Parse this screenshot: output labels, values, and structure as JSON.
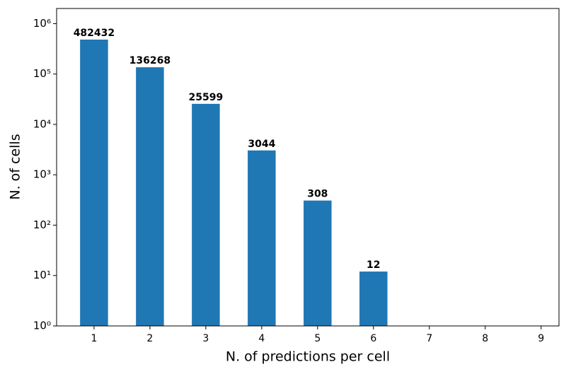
{
  "chart_data": {
    "type": "bar",
    "xlabel": "N. of predictions per cell",
    "ylabel": "N. of cells",
    "x": [
      1,
      2,
      3,
      4,
      5,
      6,
      7,
      8,
      9
    ],
    "values": [
      482432,
      136268,
      25599,
      3044,
      308,
      12,
      null,
      null,
      null
    ],
    "color": "#1f77b4",
    "xlim": [
      0.33,
      9.32
    ],
    "xticks": [
      1,
      2,
      3,
      4,
      5,
      6,
      7,
      8,
      9
    ],
    "yscale": "log",
    "ylim": [
      1,
      2000000
    ],
    "yticks": [
      {
        "value": 1,
        "label": "10⁰"
      },
      {
        "value": 10,
        "label": "10¹"
      },
      {
        "value": 100,
        "label": "10²"
      },
      {
        "value": 1000,
        "label": "10³"
      },
      {
        "value": 10000,
        "label": "10⁴"
      },
      {
        "value": 100000,
        "label": "10⁵"
      },
      {
        "value": 1000000,
        "label": "10⁶"
      }
    ],
    "bar_width": 0.5,
    "grid": false
  }
}
